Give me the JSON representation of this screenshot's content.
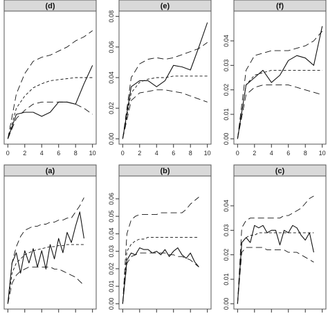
{
  "chart_data": [
    {
      "type": "line",
      "title": "(d)",
      "x": [
        0,
        1,
        2,
        3,
        4,
        5,
        6,
        7,
        8,
        9,
        10
      ],
      "xlim": [
        0,
        10
      ],
      "xticks": [
        0,
        2,
        4,
        6,
        8,
        10
      ],
      "ylim": [
        0,
        0.06
      ],
      "yticks": [],
      "show_xtick_labels": true,
      "show_ytick_labels": false,
      "series": [
        {
          "style": "solid",
          "values": [
            0,
            0.012,
            0.013,
            0.013,
            0.011,
            0.013,
            0.018,
            0.018,
            0.017,
            0.027,
            0.036
          ]
        },
        {
          "style": "short-dash",
          "values": [
            0,
            0.015,
            0.021,
            0.025,
            0.027,
            0.0285,
            0.029,
            0.0295,
            0.03,
            0.03,
            0.03
          ]
        },
        {
          "style": "long-dash",
          "values": [
            0,
            0.01,
            0.014,
            0.017,
            0.018,
            0.018,
            0.018,
            0.018,
            0.017,
            0.015,
            0.012
          ]
        },
        {
          "style": "long-dash",
          "values": [
            0,
            0.022,
            0.032,
            0.038,
            0.04,
            0.041,
            0.043,
            0.045,
            0.048,
            0.05,
            0.053
          ]
        }
      ]
    },
    {
      "type": "line",
      "title": "(e)",
      "x": [
        0,
        1,
        2,
        3,
        4,
        5,
        6,
        7,
        8,
        9,
        10
      ],
      "xlim": [
        0,
        10
      ],
      "xticks": [
        0,
        2,
        4,
        6,
        8,
        10
      ],
      "ylim": [
        0,
        0.08
      ],
      "yticks": [
        0,
        0.02,
        0.04,
        0.06,
        0.08
      ],
      "ytick_labels": [
        "0.00",
        "0.02",
        "0.04",
        "0.06",
        "0.08"
      ],
      "show_xtick_labels": true,
      "show_ytick_labels": true,
      "series": [
        {
          "style": "solid",
          "values": [
            0,
            0.034,
            0.038,
            0.038,
            0.034,
            0.038,
            0.048,
            0.047,
            0.045,
            0.06,
            0.076
          ]
        },
        {
          "style": "short-dash",
          "values": [
            0,
            0.03,
            0.037,
            0.039,
            0.04,
            0.04,
            0.041,
            0.041,
            0.041,
            0.041,
            0.041
          ]
        },
        {
          "style": "long-dash",
          "values": [
            0,
            0.025,
            0.03,
            0.031,
            0.032,
            0.032,
            0.031,
            0.03,
            0.028,
            0.026,
            0.024
          ]
        },
        {
          "style": "long-dash",
          "values": [
            0,
            0.04,
            0.049,
            0.052,
            0.053,
            0.052,
            0.053,
            0.055,
            0.057,
            0.059,
            0.063
          ]
        }
      ]
    },
    {
      "type": "line",
      "title": "(f)",
      "x": [
        0,
        1,
        2,
        3,
        4,
        5,
        6,
        7,
        8,
        9,
        10
      ],
      "xlim": [
        0,
        10
      ],
      "xticks": [
        0,
        2,
        4,
        6,
        8,
        10
      ],
      "ylim": [
        0,
        0.05
      ],
      "yticks": [
        0,
        0.01,
        0.02,
        0.03,
        0.04
      ],
      "ytick_labels": [
        "0.00",
        "0.01",
        "0.02",
        "0.03",
        "0.04"
      ],
      "show_xtick_labels": true,
      "show_ytick_labels": true,
      "series": [
        {
          "style": "solid",
          "values": [
            0,
            0.022,
            0.025,
            0.028,
            0.023,
            0.026,
            0.032,
            0.034,
            0.033,
            0.03,
            0.046
          ]
        },
        {
          "style": "short-dash",
          "values": [
            0,
            0.022,
            0.026,
            0.027,
            0.028,
            0.028,
            0.028,
            0.028,
            0.028,
            0.028,
            0.028
          ]
        },
        {
          "style": "long-dash",
          "values": [
            0,
            0.018,
            0.021,
            0.022,
            0.022,
            0.022,
            0.022,
            0.021,
            0.02,
            0.019,
            0.018
          ]
        },
        {
          "style": "long-dash",
          "values": [
            0,
            0.028,
            0.034,
            0.035,
            0.036,
            0.036,
            0.036,
            0.037,
            0.038,
            0.04,
            0.044
          ]
        }
      ]
    },
    {
      "type": "line",
      "title": "(a)",
      "x": [
        0,
        0.5,
        1,
        1.5,
        2,
        2.5,
        3,
        3.5,
        4,
        4.5,
        5,
        5.5,
        6,
        6.5,
        7,
        7.5,
        8,
        8.5,
        9
      ],
      "xlim": [
        0,
        10
      ],
      "xticks": [
        0,
        2,
        4,
        6,
        8,
        10
      ],
      "ylim": [
        0,
        0.06
      ],
      "yticks": [],
      "show_xtick_labels": false,
      "show_ytick_labels": false,
      "series": [
        {
          "style": "solid",
          "values": [
            0,
            0.02,
            0.025,
            0.015,
            0.026,
            0.02,
            0.027,
            0.018,
            0.026,
            0.017,
            0.029,
            0.022,
            0.032,
            0.025,
            0.035,
            0.03,
            0.038,
            0.045,
            0.032
          ]
        },
        {
          "style": "short-dash",
          "values": [
            0,
            0.015,
            0.02,
            0.022,
            0.024,
            0.025,
            0.026,
            0.0265,
            0.027,
            0.0275,
            0.028,
            0.028,
            0.0285,
            0.0285,
            0.029,
            0.029,
            0.029,
            0.029,
            0.029
          ]
        },
        {
          "style": "long-dash",
          "values": [
            0,
            0.01,
            0.014,
            0.016,
            0.017,
            0.018,
            0.018,
            0.018,
            0.018,
            0.018,
            0.018,
            0.017,
            0.017,
            0.016,
            0.015,
            0.014,
            0.013,
            0.011,
            0.009
          ]
        },
        {
          "style": "long-dash",
          "values": [
            0,
            0.02,
            0.028,
            0.033,
            0.036,
            0.037,
            0.038,
            0.038,
            0.039,
            0.039,
            0.04,
            0.04,
            0.041,
            0.041,
            0.042,
            0.042,
            0.045,
            0.048,
            0.052
          ]
        }
      ]
    },
    {
      "type": "line",
      "title": "(b)",
      "x": [
        0,
        0.5,
        1,
        1.5,
        2,
        2.5,
        3,
        3.5,
        4,
        4.5,
        5,
        5.5,
        6,
        6.5,
        7,
        7.5,
        8,
        8.5,
        9
      ],
      "xlim": [
        0,
        10
      ],
      "xticks": [
        0,
        2,
        4,
        6,
        8,
        10
      ],
      "ylim": [
        0,
        0.07
      ],
      "yticks": [
        0,
        0.01,
        0.02,
        0.03,
        0.04,
        0.05,
        0.06
      ],
      "ytick_labels": [
        "0.00",
        "0.01",
        "0.02",
        "0.03",
        "0.04",
        "0.05",
        "0.06"
      ],
      "show_xtick_labels": false,
      "show_ytick_labels": true,
      "series": [
        {
          "style": "solid",
          "values": [
            0,
            0.025,
            0.029,
            0.028,
            0.032,
            0.031,
            0.031,
            0.029,
            0.03,
            0.028,
            0.031,
            0.027,
            0.03,
            0.032,
            0.028,
            0.026,
            0.029,
            0.024,
            0.021
          ]
        },
        {
          "style": "short-dash",
          "values": [
            0,
            0.03,
            0.034,
            0.036,
            0.037,
            0.037,
            0.038,
            0.038,
            0.038,
            0.038,
            0.038,
            0.038,
            0.038,
            0.038,
            0.038,
            0.038,
            0.038,
            0.038,
            0.038
          ]
        },
        {
          "style": "long-dash",
          "values": [
            0,
            0.023,
            0.027,
            0.028,
            0.029,
            0.029,
            0.029,
            0.029,
            0.029,
            0.029,
            0.029,
            0.028,
            0.028,
            0.027,
            0.027,
            0.026,
            0.025,
            0.023,
            0.021
          ]
        },
        {
          "style": "long-dash",
          "values": [
            0,
            0.04,
            0.048,
            0.05,
            0.051,
            0.051,
            0.051,
            0.051,
            0.051,
            0.052,
            0.052,
            0.052,
            0.052,
            0.052,
            0.052,
            0.054,
            0.057,
            0.059,
            0.061
          ]
        }
      ]
    },
    {
      "type": "line",
      "title": "(c)",
      "x": [
        0,
        0.5,
        1,
        1.5,
        2,
        2.5,
        3,
        3.5,
        4,
        4.5,
        5,
        5.5,
        6,
        6.5,
        7,
        7.5,
        8,
        8.5,
        9
      ],
      "xlim": [
        0,
        10
      ],
      "xticks": [
        0,
        2,
        4,
        6,
        8,
        10
      ],
      "ylim": [
        0,
        0.05
      ],
      "yticks": [
        0,
        0.01,
        0.02,
        0.03,
        0.04
      ],
      "ytick_labels": [
        "0.00",
        "0.01",
        "0.02",
        "0.03",
        "0.04"
      ],
      "show_xtick_labels": false,
      "show_ytick_labels": true,
      "series": [
        {
          "style": "solid",
          "values": [
            0,
            0.025,
            0.027,
            0.025,
            0.032,
            0.031,
            0.032,
            0.029,
            0.03,
            0.03,
            0.024,
            0.03,
            0.029,
            0.032,
            0.031,
            0.028,
            0.026,
            0.029,
            0.021
          ]
        },
        {
          "style": "short-dash",
          "values": [
            0,
            0.025,
            0.027,
            0.028,
            0.028,
            0.029,
            0.029,
            0.029,
            0.029,
            0.029,
            0.029,
            0.029,
            0.029,
            0.029,
            0.029,
            0.029,
            0.029,
            0.029,
            0.029
          ]
        },
        {
          "style": "long-dash",
          "values": [
            0,
            0.021,
            0.023,
            0.023,
            0.023,
            0.023,
            0.023,
            0.022,
            0.022,
            0.022,
            0.022,
            0.022,
            0.021,
            0.021,
            0.021,
            0.02,
            0.019,
            0.018,
            0.017
          ]
        },
        {
          "style": "long-dash",
          "values": [
            0,
            0.031,
            0.034,
            0.035,
            0.035,
            0.035,
            0.035,
            0.035,
            0.035,
            0.035,
            0.035,
            0.036,
            0.036,
            0.037,
            0.038,
            0.039,
            0.041,
            0.043,
            0.044
          ]
        }
      ]
    }
  ]
}
